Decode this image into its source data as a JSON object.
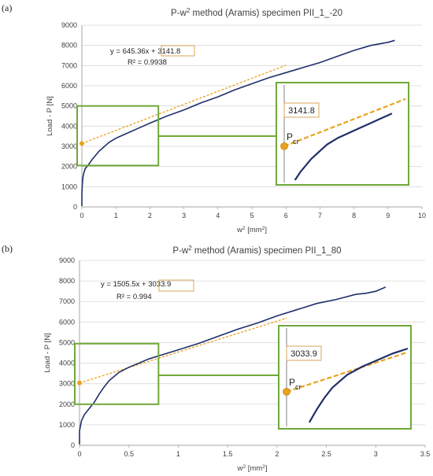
{
  "colors": {
    "curve": "#1f2f6b",
    "fit_line": "#e9a21f",
    "highlight_box": "#70a83a",
    "value_box": "#d9a45a",
    "axis": "#a6a6a6"
  },
  "chart_data": [
    {
      "type": "line",
      "panel_label": "(a)",
      "title_html_parts": [
        "P-w",
        "2",
        " method (Aramis) specimen PII_1_-20"
      ],
      "xlabel_parts": [
        "w",
        "2",
        " [mm",
        "2",
        "]"
      ],
      "ylabel": "Load - P [N]",
      "xlim": [
        0,
        10
      ],
      "ylim": [
        0,
        9000
      ],
      "xticks": [
        "0",
        "1",
        "2",
        "3",
        "4",
        "5",
        "6",
        "7",
        "8",
        "9",
        "10"
      ],
      "yticks": [
        "0",
        "1000",
        "2000",
        "3000",
        "4000",
        "5000",
        "6000",
        "7000",
        "8000",
        "9000"
      ],
      "equation_prefix": "y = 645.36x + ",
      "equation_intercept": "3141.8",
      "r_squared": "R² = 0.9938",
      "fit": {
        "slope": 645.36,
        "intercept": 3141.8,
        "x_range": [
          0,
          6.0
        ]
      },
      "series": [
        {
          "x": [
            0.0,
            0.0,
            0.01,
            0.02,
            0.04,
            0.07,
            0.1,
            0.15,
            0.2,
            0.3,
            0.4,
            0.5,
            0.6,
            0.7,
            0.8,
            1.0,
            1.2,
            1.4,
            1.6,
            1.8,
            2.0,
            2.5,
            3.0,
            3.5,
            4.0,
            4.5,
            5.0,
            5.5,
            6.0,
            6.5,
            7.0,
            7.5,
            8.0,
            8.5,
            9.0,
            9.2
          ],
          "y": [
            50,
            600,
            1000,
            1300,
            1550,
            1750,
            1900,
            2000,
            2100,
            2350,
            2550,
            2750,
            2900,
            3050,
            3200,
            3400,
            3550,
            3700,
            3850,
            4000,
            4150,
            4500,
            4800,
            5150,
            5450,
            5800,
            6100,
            6400,
            6650,
            6900,
            7150,
            7450,
            7750,
            8000,
            8150,
            8250
          ]
        }
      ],
      "zoom": {
        "x": [
          0,
          2.25
        ],
        "y": [
          2050,
          5000
        ]
      },
      "inset_value": "3141.8",
      "inset_label": "P",
      "inset_label_sub": "cr"
    },
    {
      "type": "line",
      "panel_label": "(b)",
      "title_html_parts": [
        "P-w",
        "2",
        " method (Aramis) specimen PII_1_80"
      ],
      "xlabel_parts": [
        "w",
        "2",
        " [mm",
        "2",
        "]"
      ],
      "ylabel": "Load - P [N]",
      "xlim": [
        0,
        3.5
      ],
      "ylim": [
        0,
        9000
      ],
      "xticks": [
        "0",
        "0.5",
        "1",
        "1.5",
        "2",
        "2.5",
        "3",
        "3.5"
      ],
      "yticks": [
        "0",
        "1000",
        "2000",
        "3000",
        "4000",
        "5000",
        "6000",
        "7000",
        "8000",
        "9000"
      ],
      "equation_prefix": "y = 1505.5x + ",
      "equation_intercept": "3033.9",
      "r_squared": "R² = 0.994",
      "fit": {
        "slope": 1505.5,
        "intercept": 3033.9,
        "x_range": [
          0,
          2.1
        ]
      },
      "series": [
        {
          "x": [
            0.0,
            0.0,
            0.02,
            0.05,
            0.1,
            0.15,
            0.2,
            0.25,
            0.3,
            0.35,
            0.4,
            0.5,
            0.6,
            0.7,
            0.8,
            0.9,
            1.0,
            1.2,
            1.4,
            1.6,
            1.8,
            2.0,
            2.2,
            2.4,
            2.6,
            2.8,
            2.9,
            3.0,
            3.1
          ],
          "y": [
            50,
            700,
            1200,
            1500,
            1800,
            2100,
            2500,
            2850,
            3150,
            3350,
            3550,
            3800,
            4000,
            4200,
            4350,
            4500,
            4650,
            4950,
            5300,
            5650,
            5950,
            6300,
            6600,
            6900,
            7100,
            7350,
            7400,
            7500,
            7700
          ]
        }
      ],
      "zoom": {
        "x": [
          0,
          0.8
        ],
        "y": [
          2000,
          4950
        ]
      },
      "inset_value": "3033.9",
      "inset_label": "P",
      "inset_label_sub": "cr"
    }
  ]
}
